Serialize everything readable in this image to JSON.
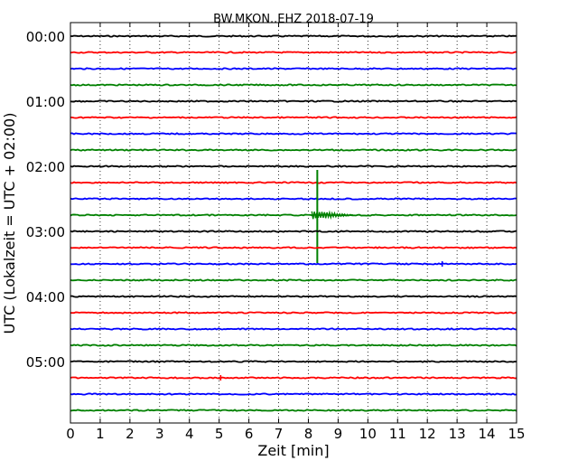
{
  "chart_data": {
    "type": "line",
    "title": "BW.MKON..EHZ 2018-07-19",
    "xlabel": "Zeit  [min]",
    "ylabel": "UTC (Lokalzeit = UTC + 02:00)",
    "xlim": [
      0,
      15
    ],
    "xticks": [
      0,
      1,
      2,
      3,
      4,
      5,
      6,
      7,
      8,
      9,
      10,
      11,
      12,
      13,
      14,
      15
    ],
    "xtick_labels": [
      "0",
      "1",
      "2",
      "3",
      "4",
      "5",
      "6",
      "7",
      "8",
      "9",
      "10",
      "11",
      "12",
      "13",
      "14",
      "15"
    ],
    "ytick_labels": [
      "00:00",
      "01:00",
      "02:00",
      "03:00",
      "04:00",
      "05:00"
    ],
    "grid": "vertical-dotted",
    "trace_colors": [
      "#000000",
      "#ff0000",
      "#0000ff",
      "#008000"
    ],
    "traces": [
      {
        "start": "00:00",
        "color": "#000000"
      },
      {
        "start": "00:15",
        "color": "#ff0000"
      },
      {
        "start": "00:30",
        "color": "#0000ff"
      },
      {
        "start": "00:45",
        "color": "#008000"
      },
      {
        "start": "01:00",
        "color": "#000000"
      },
      {
        "start": "01:15",
        "color": "#ff0000"
      },
      {
        "start": "01:30",
        "color": "#0000ff"
      },
      {
        "start": "01:45",
        "color": "#008000"
      },
      {
        "start": "02:00",
        "color": "#000000"
      },
      {
        "start": "02:15",
        "color": "#ff0000"
      },
      {
        "start": "02:30",
        "color": "#0000ff"
      },
      {
        "start": "02:45",
        "color": "#008000",
        "event_min": 8.3,
        "event_amplitude": "large"
      },
      {
        "start": "03:00",
        "color": "#000000"
      },
      {
        "start": "03:15",
        "color": "#ff0000"
      },
      {
        "start": "03:30",
        "color": "#0000ff",
        "event_min": 12.5,
        "event_amplitude": "small"
      },
      {
        "start": "03:45",
        "color": "#008000"
      },
      {
        "start": "04:00",
        "color": "#000000"
      },
      {
        "start": "04:15",
        "color": "#ff0000"
      },
      {
        "start": "04:30",
        "color": "#0000ff"
      },
      {
        "start": "04:45",
        "color": "#008000"
      },
      {
        "start": "05:00",
        "color": "#000000"
      },
      {
        "start": "05:15",
        "color": "#ff0000",
        "event_min": 5.05,
        "event_amplitude": "small"
      },
      {
        "start": "05:30",
        "color": "#0000ff"
      },
      {
        "start": "05:45",
        "color": "#008000"
      }
    ]
  }
}
